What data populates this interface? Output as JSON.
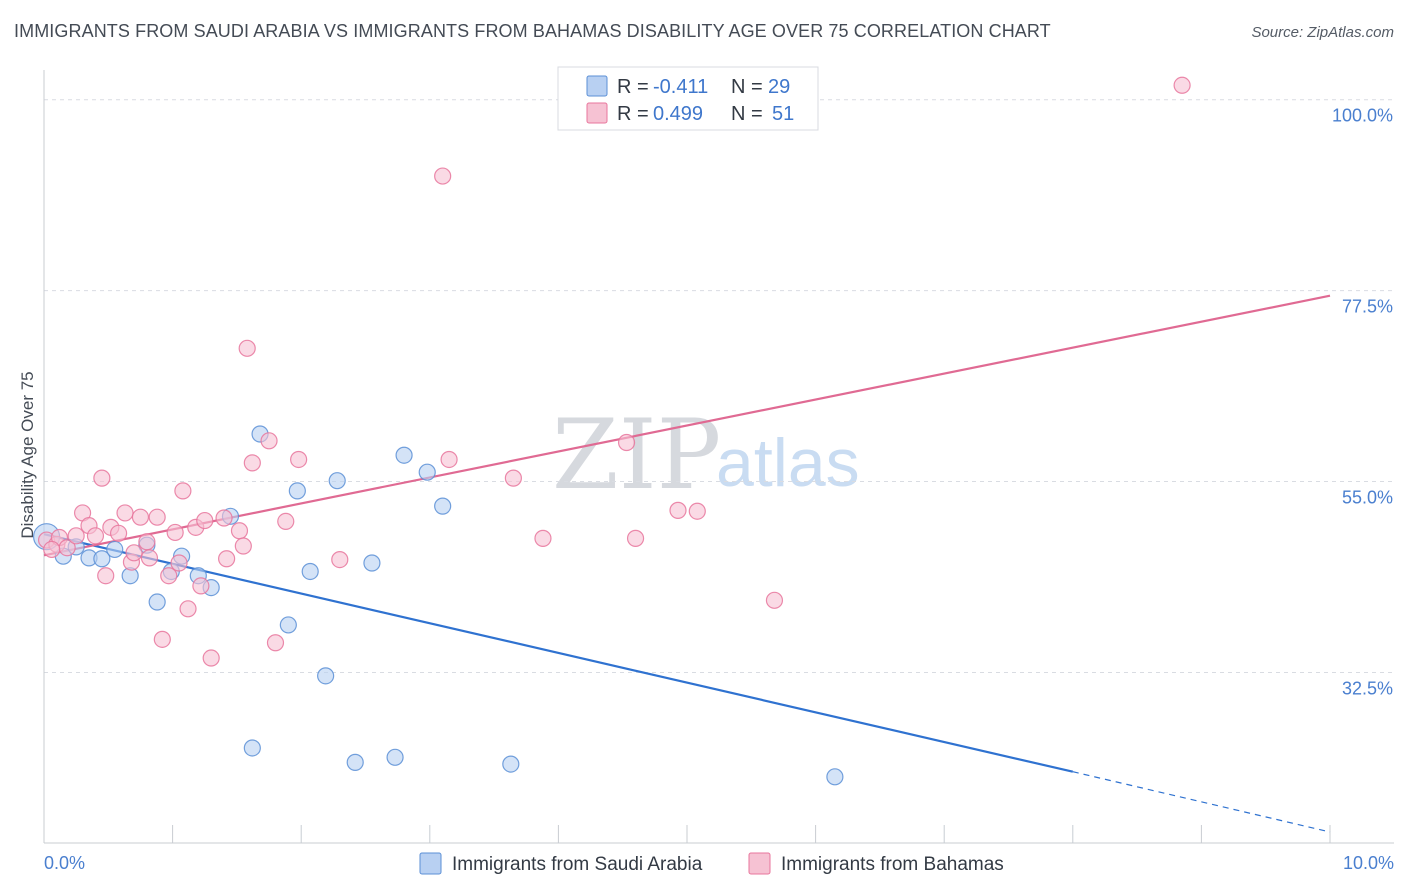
{
  "title": "IMMIGRANTS FROM SAUDI ARABIA VS IMMIGRANTS FROM BAHAMAS DISABILITY AGE OVER 75 CORRELATION CHART",
  "source": "Source: ZipAtlas.com",
  "watermark": {
    "zip": "ZIP",
    "atlas": "atlas"
  },
  "colors": {
    "blue": "#5b8fd6",
    "blue_fill": "#b8d0f2",
    "blue_line": "#2f72d0",
    "pink": "#e8769c",
    "pink_fill": "#f6c2d3",
    "pink_line": "#e06a93",
    "grid": "#d9dce2",
    "axis_text": "#4a7fcf"
  },
  "legend": {
    "r_label": "R =",
    "n_label": "N =",
    "rows": [
      {
        "r": "-0.411",
        "n": "29"
      },
      {
        "r": "0.499",
        "n": "51"
      }
    ]
  },
  "chart_data": {
    "type": "scatter",
    "title": "IMMIGRANTS FROM SAUDI ARABIA VS IMMIGRANTS FROM BAHAMAS DISABILITY AGE OVER 75 CORRELATION CHART",
    "xlabel": "",
    "ylabel": "Disability Age Over 75",
    "xlim": [
      0,
      10
    ],
    "ylim": [
      12.4,
      103.5
    ],
    "x_tick_labels": [
      "0.0%",
      "10.0%"
    ],
    "y_ticks": [
      32.5,
      55.0,
      77.5,
      100.0
    ],
    "y_tick_labels": [
      "32.5%",
      "55.0%",
      "77.5%",
      "100.0%"
    ],
    "grid": true,
    "legend_position": "top-center",
    "series": [
      {
        "name": "Immigrants from Saudi Arabia",
        "r": -0.411,
        "n": 29,
        "points": [
          [
            0.02,
            48.5
          ],
          [
            0.15,
            46.2
          ],
          [
            0.25,
            47.3
          ],
          [
            0.35,
            46.0
          ],
          [
            0.45,
            45.9
          ],
          [
            0.55,
            47.0
          ],
          [
            0.67,
            43.9
          ],
          [
            0.8,
            47.5
          ],
          [
            0.88,
            40.8
          ],
          [
            0.99,
            44.4
          ],
          [
            1.07,
            46.2
          ],
          [
            1.2,
            43.9
          ],
          [
            1.3,
            42.5
          ],
          [
            1.45,
            50.9
          ],
          [
            1.62,
            23.6
          ],
          [
            1.68,
            60.6
          ],
          [
            1.9,
            38.1
          ],
          [
            1.97,
            53.9
          ],
          [
            2.07,
            44.4
          ],
          [
            2.19,
            32.1
          ],
          [
            2.28,
            55.1
          ],
          [
            2.42,
            21.9
          ],
          [
            2.55,
            45.4
          ],
          [
            2.73,
            22.5
          ],
          [
            2.8,
            58.1
          ],
          [
            2.98,
            56.1
          ],
          [
            3.1,
            52.1
          ],
          [
            3.63,
            21.7
          ],
          [
            6.15,
            20.2
          ]
        ],
        "trend": {
          "x0": 0.0,
          "y0": 48.8,
          "x1": 8.0,
          "y1": 20.8,
          "dash_to": {
            "x": 10.0,
            "y": 13.7
          }
        }
      },
      {
        "name": "Immigrants from Bahamas",
        "r": 0.499,
        "n": 51,
        "points": [
          [
            0.02,
            48.1
          ],
          [
            0.1,
            47.6
          ],
          [
            0.12,
            48.4
          ],
          [
            0.18,
            47.2
          ],
          [
            0.25,
            48.6
          ],
          [
            0.3,
            51.3
          ],
          [
            0.35,
            49.8
          ],
          [
            0.4,
            48.6
          ],
          [
            0.45,
            55.4
          ],
          [
            0.48,
            43.9
          ],
          [
            0.52,
            49.6
          ],
          [
            0.58,
            48.9
          ],
          [
            0.63,
            51.3
          ],
          [
            0.68,
            45.5
          ],
          [
            0.7,
            46.6
          ],
          [
            0.75,
            50.8
          ],
          [
            0.8,
            47.9
          ],
          [
            0.82,
            46.0
          ],
          [
            0.88,
            50.8
          ],
          [
            0.92,
            36.4
          ],
          [
            0.97,
            43.9
          ],
          [
            1.02,
            49.0
          ],
          [
            1.05,
            45.4
          ],
          [
            1.08,
            53.9
          ],
          [
            1.12,
            40.0
          ],
          [
            1.18,
            49.6
          ],
          [
            1.22,
            42.7
          ],
          [
            1.25,
            50.4
          ],
          [
            1.3,
            34.2
          ],
          [
            1.4,
            50.7
          ],
          [
            1.42,
            45.9
          ],
          [
            1.52,
            49.2
          ],
          [
            1.55,
            47.4
          ],
          [
            1.58,
            70.7
          ],
          [
            1.62,
            57.2
          ],
          [
            1.75,
            59.8
          ],
          [
            1.8,
            36.0
          ],
          [
            1.88,
            50.3
          ],
          [
            1.98,
            57.6
          ],
          [
            2.3,
            45.8
          ],
          [
            3.1,
            91.0
          ],
          [
            3.15,
            57.6
          ],
          [
            3.65,
            55.4
          ],
          [
            3.88,
            48.3
          ],
          [
            4.53,
            59.6
          ],
          [
            4.6,
            48.3
          ],
          [
            4.93,
            51.6
          ],
          [
            5.08,
            51.5
          ],
          [
            5.68,
            41.0
          ],
          [
            8.85,
            101.7
          ],
          [
            0.06,
            47.0
          ]
        ],
        "trend": {
          "x0": 0.0,
          "y0": 46.3,
          "x1": 10.0,
          "y1": 76.9
        }
      }
    ]
  }
}
